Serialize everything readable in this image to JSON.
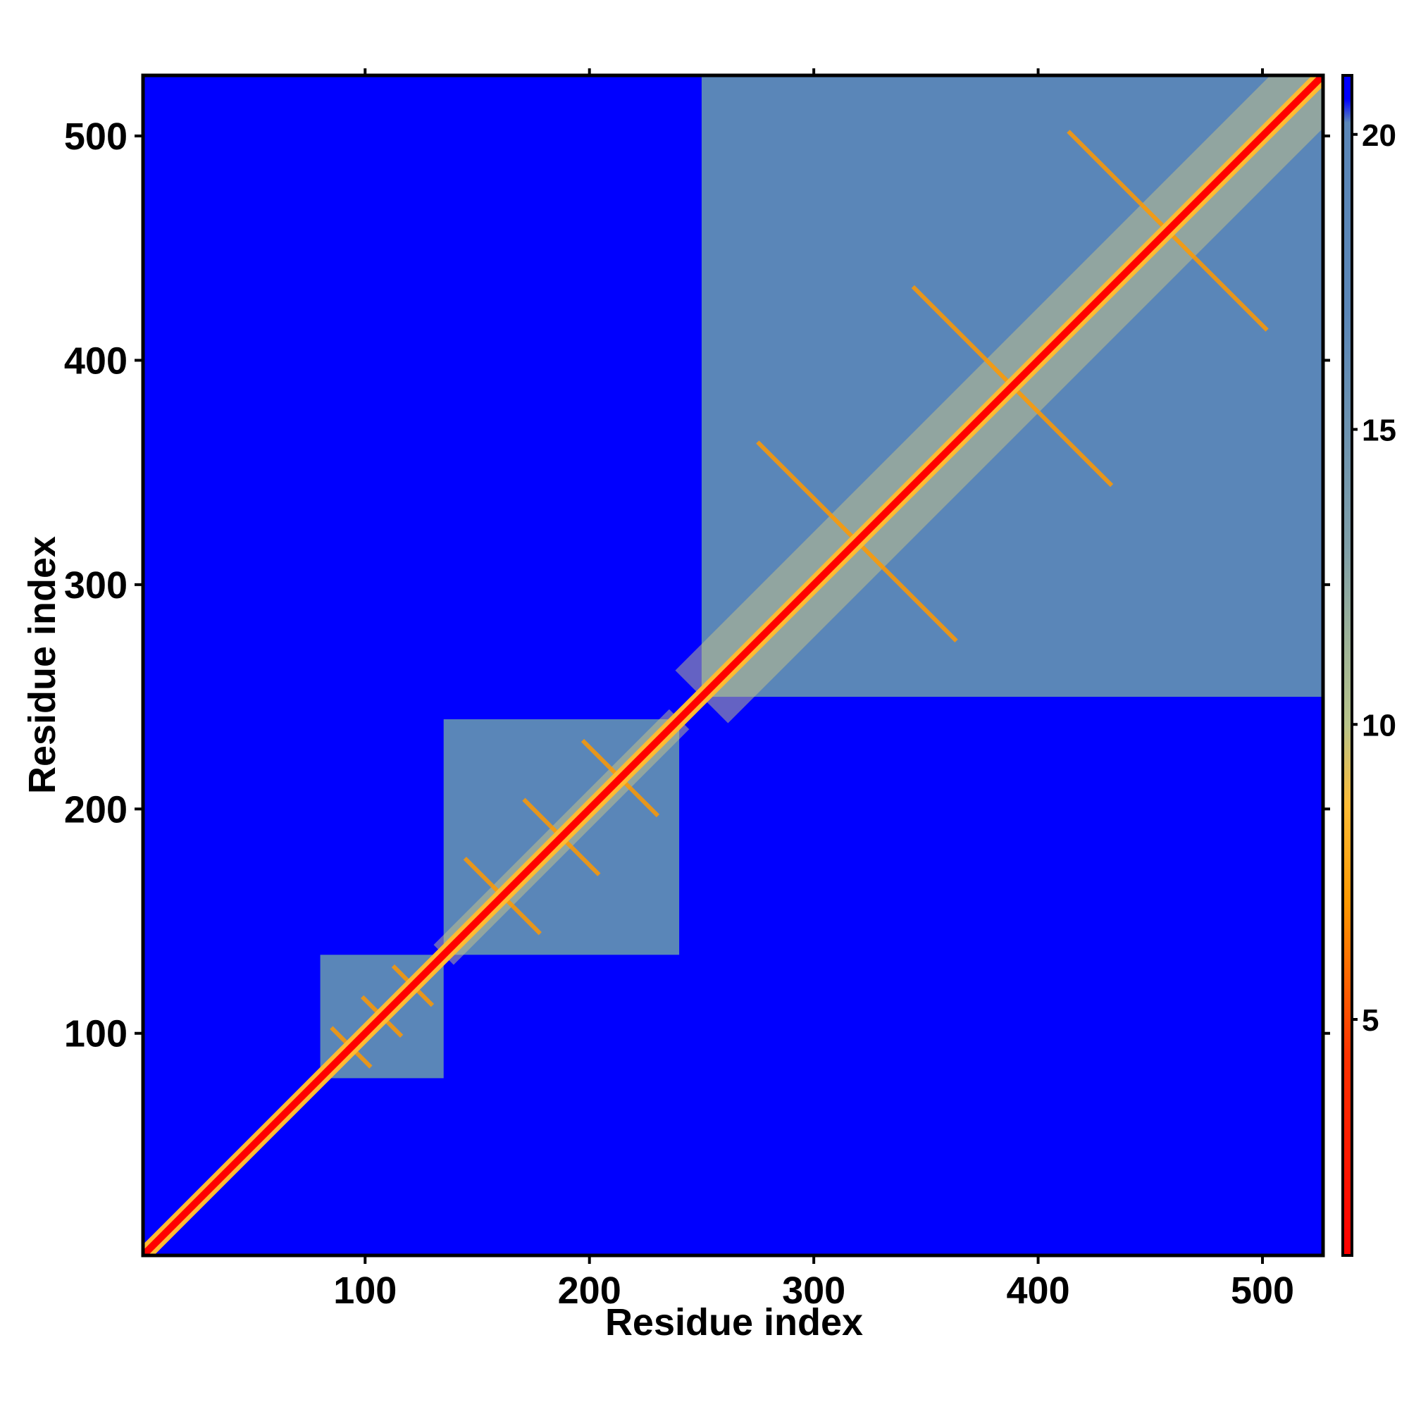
{
  "chart_data": {
    "type": "heatmap",
    "title": "",
    "xlabel": "Residue index",
    "ylabel": "Residue index",
    "xlim": [
      1,
      527
    ],
    "ylim": [
      1,
      527
    ],
    "x_ticks": [
      100,
      200,
      300,
      400,
      500
    ],
    "y_ticks": [
      100,
      200,
      300,
      400,
      500
    ],
    "colorbar": {
      "range": [
        1,
        21
      ],
      "ticks": [
        5,
        10,
        15,
        20
      ],
      "colors": {
        "low": "#ff0000",
        "mid": "#ff9900",
        "high": "#5a86b8",
        "max": "#0000ff"
      }
    },
    "domains": [
      {
        "start": 80,
        "end": 135
      },
      {
        "start": 135,
        "end": 240
      },
      {
        "start": 250,
        "end": 527
      }
    ],
    "background_color": "#0000ff"
  }
}
